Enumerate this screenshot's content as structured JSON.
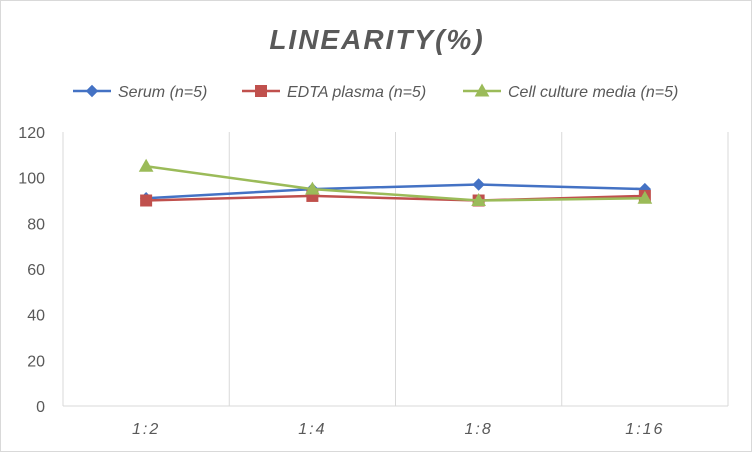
{
  "chart_data": {
    "type": "line",
    "title": "LINEARITY(%)",
    "xlabel": "",
    "ylabel": "",
    "categories": [
      "1:2",
      "1:4",
      "1:8",
      "1:16"
    ],
    "ylim": [
      0,
      120
    ],
    "yticks": [
      0,
      20,
      40,
      60,
      80,
      100,
      120
    ],
    "grid": "vertical",
    "legend_position": "top",
    "series": [
      {
        "name": "Serum (n=5)",
        "values": [
          91,
          95,
          97,
          95
        ],
        "color": "#4472c4",
        "marker": "diamond"
      },
      {
        "name": "EDTA plasma (n=5)",
        "values": [
          90,
          92,
          90,
          92
        ],
        "color": "#c0504d",
        "marker": "square"
      },
      {
        "name": "Cell culture media (n=5)",
        "values": [
          105,
          95,
          90,
          91
        ],
        "color": "#9bbb59",
        "marker": "triangle"
      }
    ]
  }
}
